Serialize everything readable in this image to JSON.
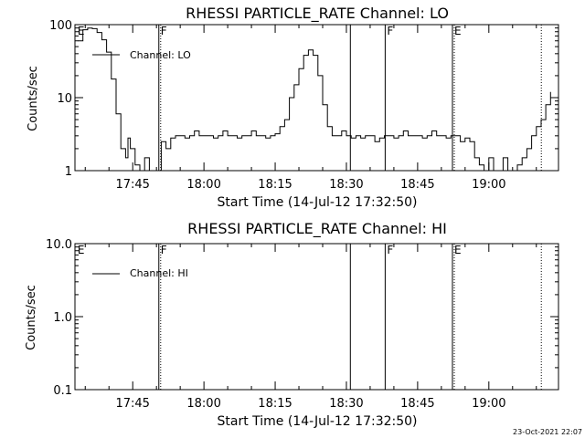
{
  "chart_data": [
    {
      "type": "line",
      "title": "RHESSI PARTICLE_RATE Channel: LO",
      "xlabel": "Start Time (14-Jul-12 17:32:50)",
      "ylabel": "Counts/sec",
      "y_scale": "log",
      "ylim": [
        1,
        100
      ],
      "xlim": [
        "17:32:50",
        "19:14:40"
      ],
      "x_ticks": [
        "17:45",
        "18:00",
        "18:15",
        "18:30",
        "18:45",
        "19:00"
      ],
      "y_ticks": [
        "1",
        "10",
        "100"
      ],
      "legend": "top-left",
      "series": [
        {
          "name": "Channel: LO",
          "x": [
            "17:33:30",
            "17:34:30",
            "17:35:30",
            "17:36:30",
            "17:37:30",
            "17:38:30",
            "17:39:30",
            "17:40:30",
            "17:41:30",
            "17:42:30",
            "17:43:30",
            "17:44:00",
            "17:44:30",
            "17:45:30",
            "17:46:30",
            "17:47:30",
            "17:48:30",
            "17:49:30",
            "17:50:00",
            "17:51:00",
            "17:52:00",
            "17:53:00",
            "17:54:00",
            "17:55:00",
            "17:56:00",
            "17:57:00",
            "17:58:00",
            "17:59:00",
            "18:00:00",
            "18:01:00",
            "18:02:00",
            "18:03:00",
            "18:04:00",
            "18:05:00",
            "18:06:00",
            "18:07:00",
            "18:08:00",
            "18:09:00",
            "18:10:00",
            "18:11:00",
            "18:12:00",
            "18:13:00",
            "18:14:00",
            "18:15:00",
            "18:16:00",
            "18:17:00",
            "18:18:00",
            "18:19:00",
            "18:20:00",
            "18:21:00",
            "18:22:00",
            "18:23:00",
            "18:24:00",
            "18:25:00",
            "18:26:00",
            "18:27:00",
            "18:28:00",
            "18:29:00",
            "18:30:00",
            "18:31:00",
            "18:32:00",
            "18:33:00",
            "18:34:00",
            "18:35:00",
            "18:36:00",
            "18:37:00",
            "18:38:00",
            "18:39:00",
            "18:40:00",
            "18:41:00",
            "18:42:00",
            "18:43:00",
            "18:44:00",
            "18:45:00",
            "18:46:00",
            "18:47:00",
            "18:48:00",
            "18:49:00",
            "18:50:00",
            "18:51:00",
            "18:52:00",
            "18:53:00",
            "18:54:00",
            "18:55:00",
            "18:56:00",
            "18:57:00",
            "18:58:00",
            "18:59:00",
            "19:00:00",
            "19:01:00",
            "19:02:00",
            "19:03:00",
            "19:04:00",
            "19:05:00",
            "19:06:00",
            "19:07:00",
            "19:08:00",
            "19:09:00",
            "19:10:00",
            "19:11:00",
            "19:12:00",
            "19:13:00"
          ],
          "values": [
            60,
            85,
            90,
            88,
            78,
            62,
            42,
            18,
            6,
            2,
            1.5,
            2.8,
            2,
            1.2,
            1,
            1.5,
            1,
            1,
            1,
            2.5,
            2,
            2.8,
            3,
            3,
            2.8,
            3,
            3.5,
            3,
            3,
            3,
            2.8,
            3,
            3.5,
            3,
            3,
            2.8,
            3,
            3,
            3.5,
            3,
            3,
            2.8,
            3,
            3.2,
            4,
            5,
            10,
            15,
            25,
            38,
            45,
            38,
            20,
            8,
            4,
            3,
            3,
            3.5,
            3,
            2.8,
            3,
            2.8,
            3,
            3,
            2.5,
            2.8,
            3,
            3,
            2.8,
            3,
            3.5,
            3,
            3,
            3,
            2.8,
            3,
            3.5,
            3,
            3,
            2.8,
            3,
            3,
            2.5,
            2.8,
            2.5,
            1.5,
            1.2,
            1,
            1.5,
            1,
            1,
            1.5,
            1,
            1,
            1.2,
            1.5,
            2,
            3,
            4,
            5,
            8,
            12
          ]
        }
      ],
      "annotations": [
        {
          "text": "E",
          "at": "17:33:00"
        },
        {
          "text": "F",
          "at": "17:50:30"
        },
        {
          "text": "F",
          "at": "18:38:10"
        },
        {
          "text": "E",
          "at": "18:52:20"
        }
      ],
      "markers_solid": [
        "17:50:30",
        "18:30:50",
        "18:38:10",
        "18:52:20"
      ],
      "markers_dotted": [
        "17:50:30",
        "18:52:20",
        "19:10:40"
      ]
    },
    {
      "type": "line",
      "title": "RHESSI PARTICLE_RATE Channel: HI",
      "xlabel": "Start Time (14-Jul-12 17:32:50)",
      "ylabel": "Counts/sec",
      "y_scale": "log",
      "ylim": [
        0.1,
        10.0
      ],
      "xlim": [
        "17:32:50",
        "19:14:40"
      ],
      "x_ticks": [
        "17:45",
        "18:00",
        "18:15",
        "18:30",
        "18:45",
        "19:00"
      ],
      "y_ticks": [
        "0.1",
        "1.0",
        "10.0"
      ],
      "legend": "top-left",
      "series": [
        {
          "name": "Channel: HI",
          "x": [],
          "values": []
        }
      ],
      "annotations": [
        {
          "text": "E",
          "at": "17:33:00"
        },
        {
          "text": "F",
          "at": "17:50:30"
        },
        {
          "text": "F",
          "at": "18:38:10"
        },
        {
          "text": "E",
          "at": "18:52:20"
        }
      ],
      "markers_solid": [
        "17:50:30",
        "18:30:50",
        "18:38:10",
        "18:52:20"
      ],
      "markers_dotted": [
        "17:50:30",
        "18:52:20",
        "19:10:40"
      ]
    }
  ],
  "timestamp": "23-Oct-2021 22:07"
}
